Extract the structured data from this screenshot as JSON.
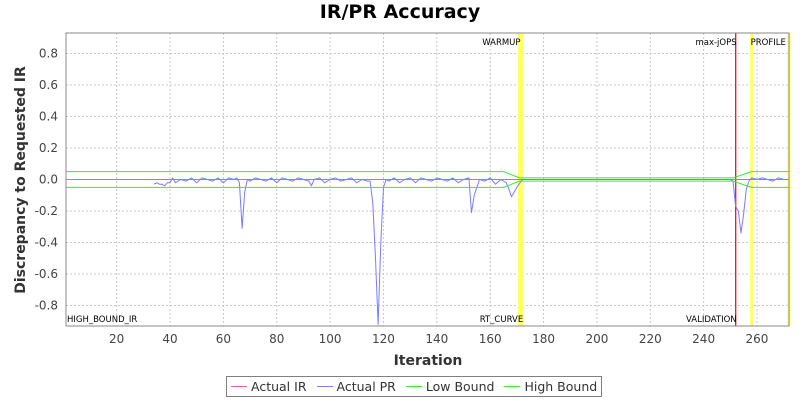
{
  "chart_data": {
    "type": "line",
    "title": "IR/PR Accuracy",
    "xlabel": "Iteration",
    "ylabel": "Discrepancy to Requested IR",
    "xlim": [
      1,
      272
    ],
    "ylim": [
      -0.93,
      0.93
    ],
    "x_ticks": [
      20,
      40,
      60,
      80,
      100,
      120,
      140,
      160,
      180,
      200,
      220,
      240,
      260
    ],
    "y_ticks": [
      -0.8,
      -0.6,
      -0.4,
      -0.2,
      0.0,
      0.2,
      0.4,
      0.6,
      0.8
    ],
    "x_tick_labels": [
      "20",
      "40",
      "60",
      "80",
      "100",
      "120",
      "140",
      "160",
      "180",
      "200",
      "220",
      "240",
      "260"
    ],
    "y_tick_labels": [
      "-0.8",
      "-0.6",
      "-0.4",
      "-0.2",
      "0.0",
      "0.2",
      "0.4",
      "0.6",
      "0.8"
    ],
    "grid": true,
    "legend_position": "bottom",
    "series": [
      {
        "name": "Actual IR",
        "color": "#ff5a8a",
        "x": [
          1,
          272
        ],
        "y": [
          0.0,
          0.0
        ]
      },
      {
        "name": "Actual PR",
        "color": "#7b7bff",
        "x": [
          34,
          35,
          36,
          37,
          38,
          39,
          40,
          41,
          42,
          44,
          46,
          48,
          50,
          52,
          54,
          56,
          58,
          60,
          62,
          64,
          65,
          66,
          67,
          68,
          69,
          70,
          72,
          74,
          76,
          78,
          80,
          82,
          84,
          86,
          88,
          90,
          92,
          93,
          94,
          96,
          98,
          100,
          102,
          104,
          106,
          108,
          110,
          112,
          114,
          115,
          116,
          117,
          118,
          119,
          120,
          121,
          122,
          124,
          126,
          128,
          130,
          132,
          134,
          136,
          138,
          140,
          142,
          144,
          146,
          148,
          150,
          152,
          153,
          154,
          156,
          158,
          160,
          162,
          164,
          166,
          167,
          168,
          170,
          172,
          180,
          190,
          200,
          210,
          220,
          230,
          240,
          248,
          250,
          251,
          252,
          253,
          254,
          255,
          256,
          257,
          258,
          260,
          262,
          264,
          266,
          268,
          270,
          272
        ],
        "y": [
          -0.03,
          -0.02,
          -0.03,
          -0.03,
          -0.04,
          -0.02,
          -0.02,
          0.01,
          -0.02,
          0.0,
          -0.01,
          0.01,
          -0.02,
          0.01,
          0.0,
          -0.01,
          0.01,
          -0.02,
          0.01,
          0.0,
          0.01,
          -0.02,
          -0.31,
          -0.08,
          0.0,
          -0.01,
          0.01,
          0.0,
          -0.01,
          0.01,
          -0.02,
          0.01,
          0.0,
          -0.01,
          0.01,
          0.0,
          -0.01,
          -0.04,
          0.0,
          0.01,
          -0.02,
          0.0,
          0.01,
          -0.01,
          0.0,
          0.01,
          -0.02,
          0.0,
          -0.01,
          -0.01,
          -0.15,
          -0.5,
          -0.92,
          -0.4,
          -0.05,
          0.0,
          -0.01,
          0.01,
          -0.02,
          0.0,
          0.01,
          -0.02,
          0.01,
          0.0,
          -0.01,
          0.01,
          0.0,
          -0.01,
          0.01,
          -0.02,
          0.0,
          0.01,
          -0.21,
          -0.1,
          0.0,
          -0.01,
          0.01,
          -0.03,
          0.0,
          -0.02,
          -0.06,
          -0.11,
          -0.05,
          0.0,
          0.0,
          0.0,
          0.0,
          0.0,
          0.0,
          0.0,
          0.0,
          0.0,
          0.0,
          -0.01,
          -0.17,
          -0.2,
          -0.34,
          -0.22,
          -0.06,
          -0.01,
          0.01,
          0.0,
          0.01,
          0.0,
          -0.01,
          0.01,
          0.0,
          0.0
        ]
      },
      {
        "name": "Low Bound",
        "color": "#33ee33",
        "x": [
          1,
          165,
          171,
          251,
          258,
          272
        ],
        "y": [
          -0.05,
          -0.05,
          -0.01,
          -0.01,
          -0.05,
          -0.05
        ]
      },
      {
        "name": "High Bound",
        "color": "#33ee33",
        "x": [
          1,
          165,
          171,
          251,
          258,
          272
        ],
        "y": [
          0.05,
          0.05,
          0.01,
          0.01,
          0.05,
          0.05
        ]
      }
    ],
    "markers": [
      {
        "x": 171,
        "label": "WARMUP",
        "color": "#ffff66",
        "label_pos": "top",
        "align": "end"
      },
      {
        "x": 172,
        "label": "RT_CURVE",
        "color": "#ffff66",
        "label_pos": "bottom",
        "align": "end"
      },
      {
        "x": 252,
        "label": "max-jOPS",
        "color": "#ee2222",
        "label_pos": "top",
        "align": "end"
      },
      {
        "x": 252,
        "label": "VALIDATION",
        "color": "#ee2222",
        "label_pos": "bottom",
        "align": "end"
      },
      {
        "x": 258,
        "label": "PROFILE",
        "color": "#ffff66",
        "label_pos": "top",
        "align": "start"
      },
      {
        "x": 272,
        "label": "",
        "color": "#ffff66",
        "label_pos": "none",
        "align": "end"
      }
    ],
    "corner_label": "HIGH_BOUND_IR"
  }
}
